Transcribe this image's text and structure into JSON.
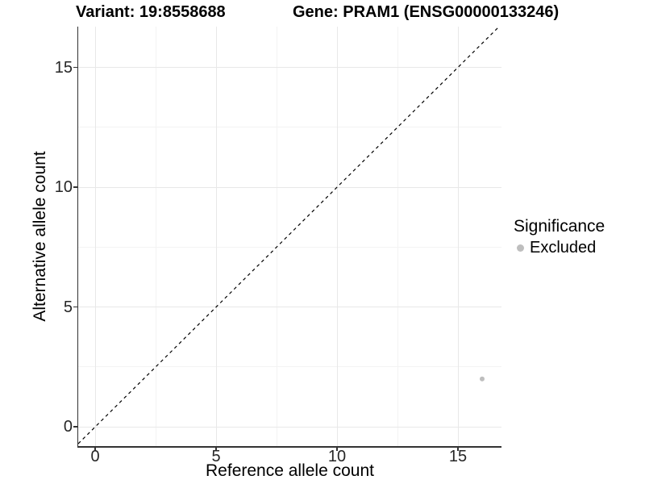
{
  "chart_data": {
    "type": "scatter",
    "titles": {
      "left": "Variant: 19:8558688",
      "right": "Gene: PRAM1 (ENSG00000133246)"
    },
    "xlabel": "Reference allele count",
    "ylabel": "Alternative allele count",
    "xlim": [
      -0.7,
      16.8
    ],
    "ylim": [
      -0.8,
      16.7
    ],
    "x_major_ticks": [
      0,
      5,
      10,
      15
    ],
    "y_major_ticks": [
      0,
      5,
      10,
      15
    ],
    "x_minor_ticks": [
      2.5,
      7.5,
      12.5
    ],
    "y_minor_ticks": [
      2.5,
      7.5,
      12.5
    ],
    "grid": true,
    "identity_line": {
      "style": "dashed",
      "slope": 1,
      "intercept": 0,
      "color": "#000000"
    },
    "series": [
      {
        "name": "Excluded",
        "color": "#bebebe",
        "points": [
          {
            "x": 16,
            "y": 2
          }
        ]
      }
    ],
    "legend": {
      "position": "right",
      "title": "Significance",
      "entries": [
        {
          "label": "Excluded",
          "color": "#bebebe"
        }
      ]
    },
    "colors": {
      "grid_major": "#e8e8e8",
      "grid_minor": "#f3f3f3",
      "axis_line": "#333333",
      "tick_text": "#262626",
      "point": "#bebebe"
    }
  }
}
